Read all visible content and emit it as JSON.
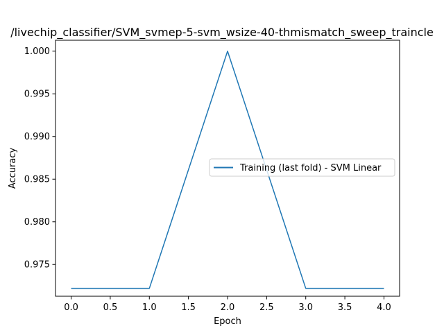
{
  "chart_data": {
    "type": "line",
    "title": "/livechip_classifier/SVM_svmep-5-svm_wsize-40-thmismatch_sweep_traincle",
    "xlabel": "Epoch",
    "ylabel": "Accuracy",
    "xlim": [
      -0.2,
      4.2
    ],
    "ylim": [
      0.97128,
      1.00128
    ],
    "x_ticks": [
      "0.0",
      "0.5",
      "1.0",
      "1.5",
      "2.0",
      "2.5",
      "3.0",
      "3.5",
      "4.0"
    ],
    "y_ticks": [
      "0.975",
      "0.980",
      "0.985",
      "0.990",
      "0.995",
      "1.000"
    ],
    "grid": false,
    "legend_position": "center-right",
    "series": [
      {
        "name": "Training (last fold) - SVM Linear",
        "color": "#1f77b4",
        "x": [
          0,
          1,
          2,
          3,
          4
        ],
        "y": [
          0.9722,
          0.9722,
          1.0,
          0.9722,
          0.9722
        ]
      }
    ]
  }
}
